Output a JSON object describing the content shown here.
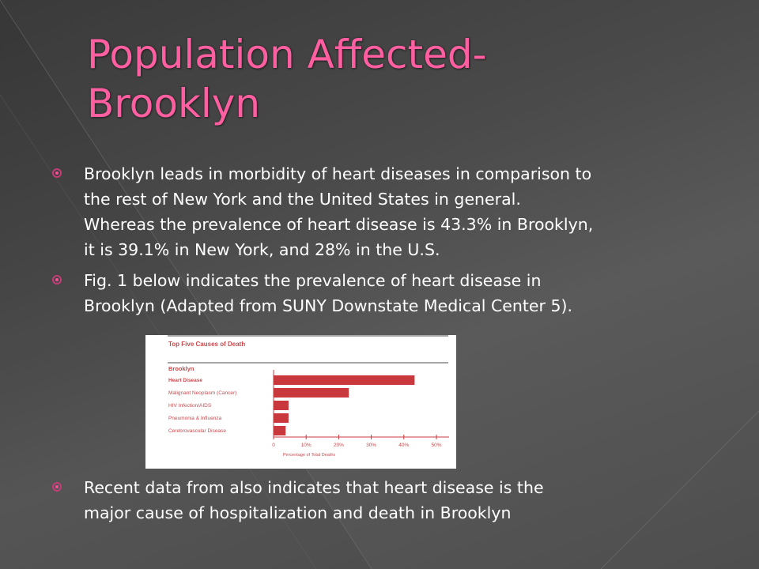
{
  "slide": {
    "title_lines": [
      "Population Affected-",
      "Brooklyn"
    ],
    "accent_color": "#ff5fa0",
    "bullets": [
      {
        "icon": "target-bullet-icon",
        "lines": [
          "Brooklyn leads in morbidity of heart diseases in comparison to",
          "the rest of New York and the United States in general.",
          "Whereas the prevalence of heart disease is 43.3% in Brooklyn,",
          "it is 39.1% in New York, and 28% in the U.S."
        ]
      },
      {
        "icon": "target-bullet-icon",
        "lines": [
          "Fig. 1 below indicates the prevalence of heart disease in",
          "Brooklyn (Adapted from SUNY Downstate Medical Center 5)."
        ]
      },
      {
        "icon": "target-bullet-icon",
        "lines": [
          "Recent data from also indicates that heart disease is the",
          "major cause of  hospitalization and death in Brooklyn"
        ]
      }
    ]
  },
  "chart_data": {
    "type": "bar",
    "orientation": "horizontal",
    "title": "Top Five Causes of Death",
    "group_label": "Brooklyn",
    "categories": [
      "Heart Disease",
      "Malignant Neoplasm (Cancer)",
      "HIV Infection/AIDS",
      "Pneumonia & Influenza",
      "Cerebrovascular Disease"
    ],
    "values": [
      43.3,
      23.1,
      4.6,
      4.6,
      3.7
    ],
    "xlabel": "Percentage of Total Deaths",
    "xlim": [
      0,
      50
    ],
    "xticks": [
      "0",
      "10%",
      "20%",
      "30%",
      "40%",
      "50%"
    ],
    "bar_color": "#c8383c",
    "grid": false
  }
}
